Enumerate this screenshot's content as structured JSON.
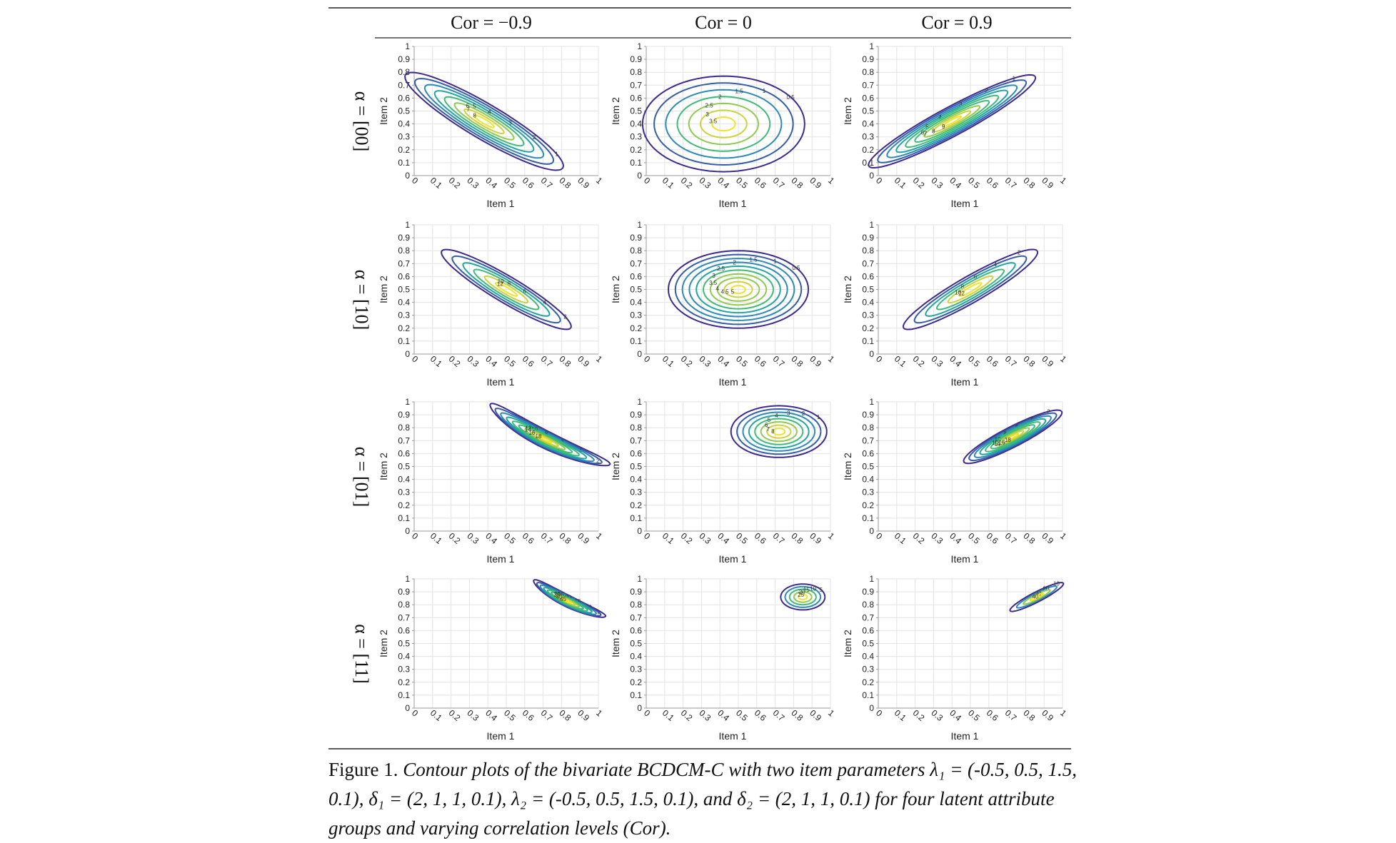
{
  "figure": {
    "column_headers": [
      "Cor = −0.9",
      "Cor = 0",
      "Cor = 0.9"
    ],
    "row_labels": [
      "α = [00]",
      "α = [10]",
      "α = [01]",
      "α = [11]"
    ],
    "caption_lead": "Figure 1",
    "caption_sep": ". ",
    "caption_body": "Contour plots of the bivariate BCDCM-C with two item parameters λ₁ = (-0.5, 0.5, 1.5, 0.1), δ₁ = (2, 1, 1, 0.1), λ₂ = (-0.5, 0.5, 1.5, 0.1), and δ₂ = (2, 1, 1, 0.1) for four latent attribute groups and varying correlation levels (Cor)."
  },
  "colors": {
    "levels": [
      "#3e2a8f",
      "#355da7",
      "#2d89b8",
      "#21a6a0",
      "#3fbb79",
      "#90ca4f",
      "#cdd23e",
      "#f0e32b"
    ],
    "grid": "#e3e3e3",
    "axis": "#9a9a9a",
    "text": "#222222",
    "rule": "#222222"
  },
  "chart_data": [
    {
      "type": "contour",
      "row": "α = [00]",
      "cor": "Cor = −0.9",
      "xlabel": "Item 1",
      "ylabel": "Item 2",
      "xlim": [
        0,
        1
      ],
      "ylim": [
        0,
        1
      ],
      "xticks": [
        "0",
        "0.1",
        "0.2",
        "0.3",
        "0.4",
        "0.5",
        "0.6",
        "0.7",
        "0.8",
        "0.9",
        "1"
      ],
      "yticks": [
        "0",
        "0.1",
        "0.2",
        "0.3",
        "0.4",
        "0.5",
        "0.6",
        "0.7",
        "0.8",
        "0.9",
        "1"
      ],
      "center": [
        0.38,
        0.42
      ],
      "spread": [
        0.56,
        0.12
      ],
      "angle_deg": -41,
      "bend": 0,
      "levels": [
        1,
        2,
        3,
        4,
        5,
        6,
        7,
        8
      ],
      "contour_labels": [
        "1",
        "2",
        "3",
        "4",
        "5",
        "6",
        "7",
        "8"
      ]
    },
    {
      "type": "contour",
      "row": "α = [00]",
      "cor": "Cor = 0",
      "xlabel": "Item 1",
      "ylabel": "Item 2",
      "xlim": [
        0,
        1
      ],
      "ylim": [
        0,
        1
      ],
      "xticks": [
        "0",
        "0.1",
        "0.2",
        "0.3",
        "0.4",
        "0.5",
        "0.6",
        "0.7",
        "0.8",
        "0.9",
        "1"
      ],
      "yticks": [
        "0",
        "0.1",
        "0.2",
        "0.3",
        "0.4",
        "0.5",
        "0.6",
        "0.7",
        "0.8",
        "0.9",
        "1"
      ],
      "center": [
        0.42,
        0.4
      ],
      "spread": [
        0.44,
        0.37
      ],
      "angle_deg": 0,
      "bend": 0,
      "levels": [
        0.5,
        1,
        1.5,
        2,
        2.5,
        3,
        3.5
      ],
      "contour_labels": [
        "0.5",
        "1",
        "1.5",
        "2",
        "2.5",
        "3",
        "3.5"
      ]
    },
    {
      "type": "contour",
      "row": "α = [00]",
      "cor": "Cor = 0.9",
      "xlabel": "Item 1",
      "ylabel": "Item 2",
      "xlim": [
        0,
        1
      ],
      "ylim": [
        0,
        1
      ],
      "xticks": [
        "0",
        "0.1",
        "0.2",
        "0.3",
        "0.4",
        "0.5",
        "0.6",
        "0.7",
        "0.8",
        "0.9",
        "1"
      ],
      "yticks": [
        "0",
        "0.1",
        "0.2",
        "0.3",
        "0.4",
        "0.5",
        "0.6",
        "0.7",
        "0.8",
        "0.9",
        "1"
      ],
      "center": [
        0.4,
        0.42
      ],
      "spread": [
        0.57,
        0.1
      ],
      "angle_deg": 38,
      "bend": 0,
      "levels": [
        1,
        2,
        3,
        4,
        5,
        6,
        7,
        8,
        9
      ],
      "contour_labels": [
        "1",
        "2",
        "3",
        "4",
        "5",
        "6",
        "7",
        "8",
        "9"
      ]
    },
    {
      "type": "contour",
      "row": "α = [10]",
      "cor": "Cor = −0.9",
      "xlabel": "Item 1",
      "ylabel": "Item 2",
      "xlim": [
        0,
        1
      ],
      "ylim": [
        0,
        1
      ],
      "xticks": [
        "0",
        "0.1",
        "0.2",
        "0.3",
        "0.4",
        "0.5",
        "0.6",
        "0.7",
        "0.8",
        "0.9",
        "1"
      ],
      "yticks": [
        "0",
        "0.1",
        "0.2",
        "0.3",
        "0.4",
        "0.5",
        "0.6",
        "0.7",
        "0.8",
        "0.9",
        "1"
      ],
      "center": [
        0.5,
        0.5
      ],
      "spread": [
        0.46,
        0.09
      ],
      "angle_deg": -41,
      "bend": 0,
      "levels": [
        2,
        4,
        6,
        8,
        10,
        12
      ],
      "contour_labels": [
        "2",
        "4",
        "6",
        "8",
        "10",
        "12"
      ]
    },
    {
      "type": "contour",
      "row": "α = [10]",
      "cor": "Cor = 0",
      "xlabel": "Item 1",
      "ylabel": "Item 2",
      "xlim": [
        0,
        1
      ],
      "ylim": [
        0,
        1
      ],
      "xticks": [
        "0",
        "0.1",
        "0.2",
        "0.3",
        "0.4",
        "0.5",
        "0.6",
        "0.7",
        "0.8",
        "0.9",
        "1"
      ],
      "yticks": [
        "0",
        "0.1",
        "0.2",
        "0.3",
        "0.4",
        "0.5",
        "0.6",
        "0.7",
        "0.8",
        "0.9",
        "1"
      ],
      "center": [
        0.5,
        0.5
      ],
      "spread": [
        0.38,
        0.3
      ],
      "angle_deg": 0,
      "bend": 0,
      "levels": [
        0.5,
        1,
        1.5,
        2,
        2.5,
        3,
        3.5,
        4,
        4.5,
        5
      ],
      "contour_labels": [
        "0.5",
        "1",
        "1.5",
        "2",
        "2.5",
        "3",
        "3.5",
        "4",
        "4.5",
        "5"
      ]
    },
    {
      "type": "contour",
      "row": "α = [10]",
      "cor": "Cor = 0.9",
      "xlabel": "Item 1",
      "ylabel": "Item 2",
      "xlim": [
        0,
        1
      ],
      "ylim": [
        0,
        1
      ],
      "xticks": [
        "0",
        "0.1",
        "0.2",
        "0.3",
        "0.4",
        "0.5",
        "0.6",
        "0.7",
        "0.8",
        "0.9",
        "1"
      ],
      "yticks": [
        "0",
        "0.1",
        "0.2",
        "0.3",
        "0.4",
        "0.5",
        "0.6",
        "0.7",
        "0.8",
        "0.9",
        "1"
      ],
      "center": [
        0.5,
        0.5
      ],
      "spread": [
        0.47,
        0.09
      ],
      "angle_deg": 40,
      "bend": 0,
      "levels": [
        2,
        4,
        6,
        8,
        10,
        12
      ],
      "contour_labels": [
        "2",
        "4",
        "6",
        "8",
        "10",
        "12"
      ]
    },
    {
      "type": "contour",
      "row": "α = [01]",
      "cor": "Cor = −0.9",
      "xlabel": "Item 1",
      "ylabel": "Item 2",
      "xlim": [
        0,
        1
      ],
      "ylim": [
        0,
        1
      ],
      "xticks": [
        "0",
        "0.1",
        "0.2",
        "0.3",
        "0.4",
        "0.5",
        "0.6",
        "0.7",
        "0.8",
        "0.9",
        "1"
      ],
      "yticks": [
        "0",
        "0.1",
        "0.2",
        "0.3",
        "0.4",
        "0.5",
        "0.6",
        "0.7",
        "0.8",
        "0.9",
        "1"
      ],
      "center": [
        0.71,
        0.71
      ],
      "spread": [
        0.4,
        0.06
      ],
      "angle_deg": -36,
      "bend": 0.12,
      "levels": [
        2,
        4,
        6,
        8,
        10,
        12,
        14,
        16,
        18
      ],
      "contour_labels": [
        "2",
        "4",
        "6",
        "8",
        "10",
        "12",
        "14",
        "16",
        "18"
      ]
    },
    {
      "type": "contour",
      "row": "α = [01]",
      "cor": "Cor = 0",
      "xlabel": "Item 1",
      "ylabel": "Item 2",
      "xlim": [
        0,
        1
      ],
      "ylim": [
        0,
        1
      ],
      "xticks": [
        "0",
        "0.1",
        "0.2",
        "0.3",
        "0.4",
        "0.5",
        "0.6",
        "0.7",
        "0.8",
        "0.9",
        "1"
      ],
      "yticks": [
        "0",
        "0.1",
        "0.2",
        "0.3",
        "0.4",
        "0.5",
        "0.6",
        "0.7",
        "0.8",
        "0.9",
        "1"
      ],
      "center": [
        0.72,
        0.77
      ],
      "spread": [
        0.26,
        0.2
      ],
      "angle_deg": 0,
      "bend": 0,
      "levels": [
        1,
        2,
        3,
        4,
        5,
        6,
        7,
        8
      ],
      "contour_labels": [
        "1",
        "2",
        "3",
        "4",
        "5",
        "6",
        "7",
        "8"
      ]
    },
    {
      "type": "contour",
      "row": "α = [01]",
      "cor": "Cor = 0.9",
      "xlabel": "Item 1",
      "ylabel": "Item 2",
      "xlim": [
        0,
        1
      ],
      "ylim": [
        0,
        1
      ],
      "xticks": [
        "0",
        "0.1",
        "0.2",
        "0.3",
        "0.4",
        "0.5",
        "0.6",
        "0.7",
        "0.8",
        "0.9",
        "1"
      ],
      "yticks": [
        "0",
        "0.1",
        "0.2",
        "0.3",
        "0.4",
        "0.5",
        "0.6",
        "0.7",
        "0.8",
        "0.9",
        "1"
      ],
      "center": [
        0.73,
        0.73
      ],
      "spread": [
        0.33,
        0.07
      ],
      "angle_deg": 37,
      "bend": 0,
      "levels": [
        2,
        4,
        6,
        8,
        10,
        12,
        14,
        16,
        18
      ],
      "contour_labels": [
        "2",
        "4",
        "6",
        "8",
        "10",
        "12",
        "14",
        "16",
        "18"
      ]
    },
    {
      "type": "contour",
      "row": "α = [11]",
      "cor": "Cor = −0.9",
      "xlabel": "Item 1",
      "ylabel": "Item 2",
      "xlim": [
        0,
        1
      ],
      "ylim": [
        0,
        1
      ],
      "xticks": [
        "0",
        "0.1",
        "0.2",
        "0.3",
        "0.4",
        "0.5",
        "0.6",
        "0.7",
        "0.8",
        "0.9",
        "1"
      ],
      "yticks": [
        "0",
        "0.1",
        "0.2",
        "0.3",
        "0.4",
        "0.5",
        "0.6",
        "0.7",
        "0.8",
        "0.9",
        "1"
      ],
      "center": [
        0.83,
        0.83
      ],
      "spread": [
        0.24,
        0.04
      ],
      "angle_deg": -36,
      "bend": 0.1,
      "levels": [
        5,
        10,
        15,
        20,
        25,
        30,
        35,
        40,
        45
      ],
      "contour_labels": [
        "5",
        "10",
        "15",
        "20",
        "25",
        "30",
        "35",
        "40",
        "45"
      ]
    },
    {
      "type": "contour",
      "row": "α = [11]",
      "cor": "Cor = 0",
      "xlabel": "Item 1",
      "ylabel": "Item 2",
      "xlim": [
        0,
        1
      ],
      "ylim": [
        0,
        1
      ],
      "xticks": [
        "0",
        "0.1",
        "0.2",
        "0.3",
        "0.4",
        "0.5",
        "0.6",
        "0.7",
        "0.8",
        "0.9",
        "1"
      ],
      "yticks": [
        "0",
        "0.1",
        "0.2",
        "0.3",
        "0.4",
        "0.5",
        "0.6",
        "0.7",
        "0.8",
        "0.9",
        "1"
      ],
      "center": [
        0.85,
        0.86
      ],
      "spread": [
        0.12,
        0.1
      ],
      "angle_deg": 0,
      "bend": 0,
      "levels": [
        5,
        10,
        15,
        20,
        25
      ],
      "contour_labels": [
        "5",
        "10",
        "15",
        "20",
        "25"
      ]
    },
    {
      "type": "contour",
      "row": "α = [11]",
      "cor": "Cor = 0.9",
      "xlabel": "Item 1",
      "ylabel": "Item 2",
      "xlim": [
        0,
        1
      ],
      "ylim": [
        0,
        1
      ],
      "xticks": [
        "0",
        "0.1",
        "0.2",
        "0.3",
        "0.4",
        "0.5",
        "0.6",
        "0.7",
        "0.8",
        "0.9",
        "1"
      ],
      "yticks": [
        "0",
        "0.1",
        "0.2",
        "0.3",
        "0.4",
        "0.5",
        "0.6",
        "0.7",
        "0.8",
        "0.9",
        "1"
      ],
      "center": [
        0.86,
        0.86
      ],
      "spread": [
        0.18,
        0.035
      ],
      "angle_deg": 37,
      "bend": 0,
      "levels": [
        10,
        20,
        30,
        40
      ],
      "contour_labels": [
        "10",
        "20",
        "30",
        "40"
      ]
    }
  ]
}
